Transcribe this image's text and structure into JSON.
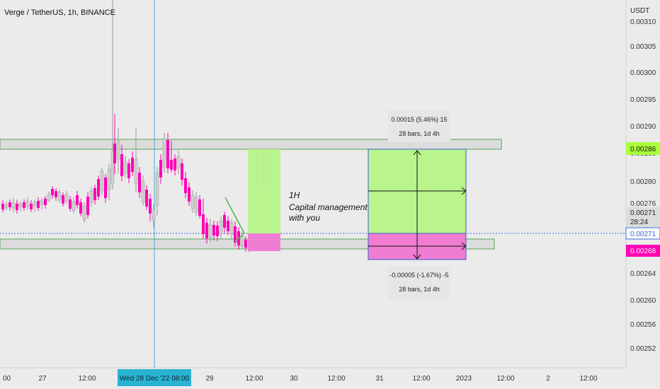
{
  "header": {
    "symbol_title": "Verge / TetherUS, 1h, BINANCE",
    "currency": "USDT"
  },
  "annotation": {
    "lines": [
      "1H",
      "Capital management",
      "with you"
    ]
  },
  "measure_up": {
    "line1": "0.00015 (5.46%) 15",
    "line2": "28 bars, 1d 4h"
  },
  "measure_down": {
    "line1": "-0.00005 (-1.67%) -5",
    "line2": "28 bars, 1d 4h"
  },
  "crosshair_label": "Wed 28 Dec '22   08:00",
  "badges": {
    "green": "0.00286",
    "grey_price": "0.00271",
    "grey_time": "28:24",
    "blue": "0.00271",
    "pink": "0.00268"
  },
  "colors": {
    "background": "#ebebeb",
    "candle_up": "#cfcfcf",
    "candle_down": "#ff00b4",
    "zone_green": "#b9f58c",
    "zone_pink": "#f07dd2",
    "badge_green": "#aaff3c",
    "badge_pink": "#ff00b4",
    "crosshair": "#46aadc",
    "price_line": "#3c6ee6"
  },
  "chart_data": {
    "type": "candlestick",
    "title": "Verge / TetherUS, 1h, BINANCE",
    "y_unit": "USDT",
    "y_ticks": [
      "0.00310",
      "0.00305",
      "0.00300",
      "0.00295",
      "0.00290",
      "0.00285",
      "0.00280",
      "0.00276",
      "0.00271",
      "0.00268",
      "0.00264",
      "0.00260",
      "0.00256",
      "0.00252"
    ],
    "x_ticks": [
      "00",
      "27",
      "12:00",
      "Wed 28 Dec '22   08:00",
      "29",
      "12:00",
      "30",
      "12:00",
      "31",
      "12:00",
      "2023",
      "12:00",
      "2",
      "12:00"
    ],
    "ylim": [
      0.00249,
      0.00312
    ],
    "current_price": 0.00271,
    "zones": [
      {
        "name": "resistance",
        "low": 0.002855,
        "high": 0.002865
      },
      {
        "name": "support",
        "low": 0.002685,
        "high": 0.002695
      }
    ],
    "position": {
      "entry": 0.002712,
      "take_profit": 0.00286,
      "stop_loss": 0.00268
    }
  }
}
